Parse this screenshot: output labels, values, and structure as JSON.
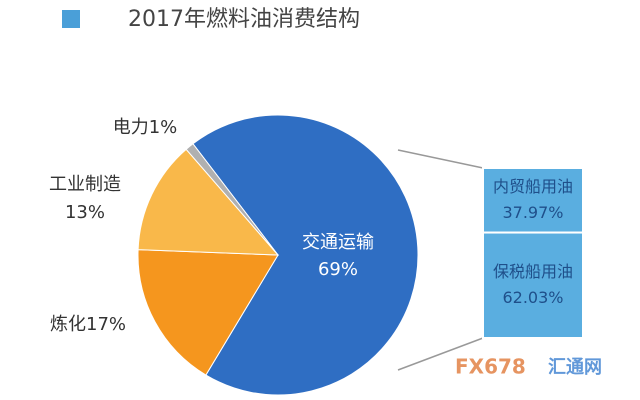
{
  "chart_data": {
    "type": "bar-of-pie",
    "title": "2017年燃料油消费结构",
    "legend_color": "#4a9fd8",
    "pie": {
      "categories": [
        "交通运输",
        "炼化",
        "工业制造",
        "电力"
      ],
      "values": [
        69,
        17,
        13,
        1
      ],
      "value_labels": [
        "69%",
        "17%",
        "13%",
        "1%"
      ],
      "colors": [
        "#2f6ec3",
        "#f5961e",
        "#f9b84a",
        "#b0b0b0"
      ]
    },
    "bar": {
      "categories": [
        "内贸船用油",
        "保税船用油"
      ],
      "values": [
        37.97,
        62.03
      ],
      "value_labels": [
        "37.97%",
        "62.03%"
      ],
      "color": "#5aaee0"
    },
    "watermark": [
      "FX678",
      "汇通网"
    ]
  }
}
